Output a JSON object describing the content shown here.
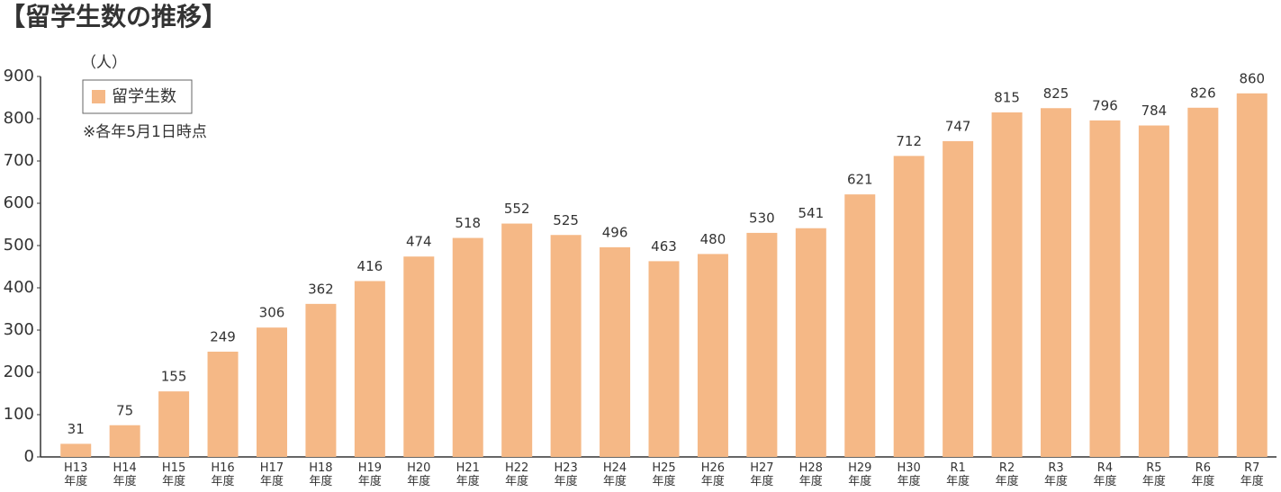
{
  "chart_data": {
    "type": "bar",
    "title": "【留学生数の推移】",
    "y_label": "（人）",
    "note": "※各年5月1日時点",
    "categories": [
      "H13\n年度",
      "H14\n年度",
      "H15\n年度",
      "H16\n年度",
      "H17\n年度",
      "H18\n年度",
      "H19\n年度",
      "H20\n年度",
      "H21\n年度",
      "H22\n年度",
      "H23\n年度",
      "H24\n年度",
      "H25\n年度",
      "H26\n年度",
      "H27\n年度",
      "H28\n年度",
      "H29\n年度",
      "H30\n年度",
      "R1\n年度",
      "R2\n年度",
      "R3\n年度",
      "R4\n年度",
      "R5\n年度",
      "R6\n年度",
      "R7\n年度"
    ],
    "series": [
      {
        "name": "留学生数",
        "color": "#f5b886",
        "values": [
          31,
          75,
          155,
          249,
          306,
          362,
          416,
          474,
          518,
          552,
          525,
          496,
          463,
          480,
          530,
          541,
          621,
          712,
          747,
          815,
          825,
          796,
          784,
          826,
          860
        ]
      }
    ],
    "ylim": [
      0,
      900
    ],
    "yticks": [
      0,
      100,
      200,
      300,
      400,
      500,
      600,
      700,
      800,
      900
    ],
    "grid": false
  }
}
